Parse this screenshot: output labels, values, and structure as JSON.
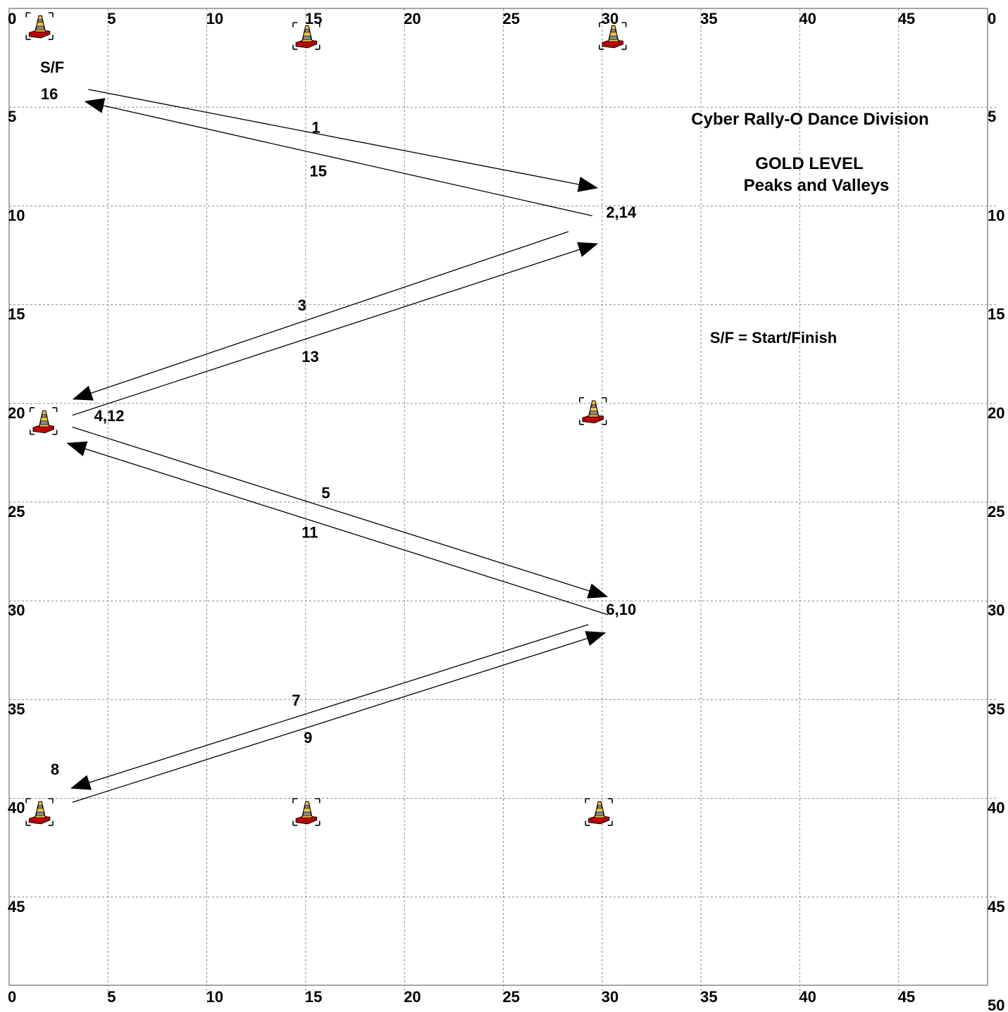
{
  "title": {
    "line1": "Cyber Rally-O Dance Division",
    "line2": "GOLD LEVEL",
    "line3": "Peaks and Valleys"
  },
  "legend_note": "S/F = Start/Finish",
  "start_finish_label": "S/F",
  "axis": {
    "x_ticks": [
      "0",
      "5",
      "10",
      "15",
      "20",
      "25",
      "30",
      "35",
      "40",
      "45"
    ],
    "y_ticks": [
      "0",
      "5",
      "10",
      "15",
      "20",
      "25",
      "30",
      "35",
      "40",
      "45"
    ],
    "x_max": 50,
    "y_max": 50,
    "corner_label": "50"
  },
  "colors": {
    "grid": "#8a8a8a",
    "cone_red": "#e00000",
    "cone_yellow": "#f0c030",
    "line": "#000000"
  },
  "cones": [
    {
      "x": 1.5,
      "y": 0.5
    },
    {
      "x": 15,
      "y": 1
    },
    {
      "x": 30.5,
      "y": 1
    },
    {
      "x": 29.5,
      "y": 20
    },
    {
      "x": 1.7,
      "y": 20.5
    },
    {
      "x": 1.5,
      "y": 40.3
    },
    {
      "x": 15,
      "y": 40.3
    },
    {
      "x": 29.8,
      "y": 40.3
    }
  ],
  "legs": [
    {
      "from": [
        4,
        4.1
      ],
      "to": [
        29.8,
        9.1
      ],
      "label": "1",
      "label_pos": [
        15.3,
        6.3
      ]
    },
    {
      "from": [
        29.5,
        10.5
      ],
      "to": [
        3.8,
        4.7
      ],
      "label": "15",
      "label_pos": [
        15.2,
        8.5
      ]
    },
    {
      "from": [
        28.3,
        11.3
      ],
      "to": [
        3.2,
        19.8
      ],
      "label": "3",
      "label_pos": [
        14.6,
        15.3
      ]
    },
    {
      "from": [
        3.2,
        20.6
      ],
      "to": [
        29.8,
        11.9
      ],
      "label": "13",
      "label_pos": [
        14.8,
        17.9
      ]
    },
    {
      "from": [
        3.2,
        21.2
      ],
      "to": [
        30.3,
        29.8
      ],
      "label": "5",
      "label_pos": [
        15.8,
        24.8
      ]
    },
    {
      "from": [
        30.3,
        30.7
      ],
      "to": [
        2.9,
        22.0
      ],
      "label": "11",
      "label_pos": [
        14.8,
        26.8
      ]
    },
    {
      "from": [
        29.3,
        31.2
      ],
      "to": [
        3.1,
        39.5
      ],
      "label": "7",
      "label_pos": [
        14.3,
        35.3
      ]
    },
    {
      "from": [
        3.2,
        40.2
      ],
      "to": [
        30.2,
        31.6
      ],
      "label": "9",
      "label_pos": [
        14.9,
        37.2
      ]
    }
  ],
  "stations": [
    {
      "label": "16",
      "x": 1.6,
      "y": 4.6
    },
    {
      "label": "2,14",
      "x": 30.2,
      "y": 10.6
    },
    {
      "label": "4,12",
      "x": 4.3,
      "y": 20.9
    },
    {
      "label": "6,10",
      "x": 30.2,
      "y": 30.7
    },
    {
      "label": "8",
      "x": 2.1,
      "y": 38.8
    }
  ]
}
